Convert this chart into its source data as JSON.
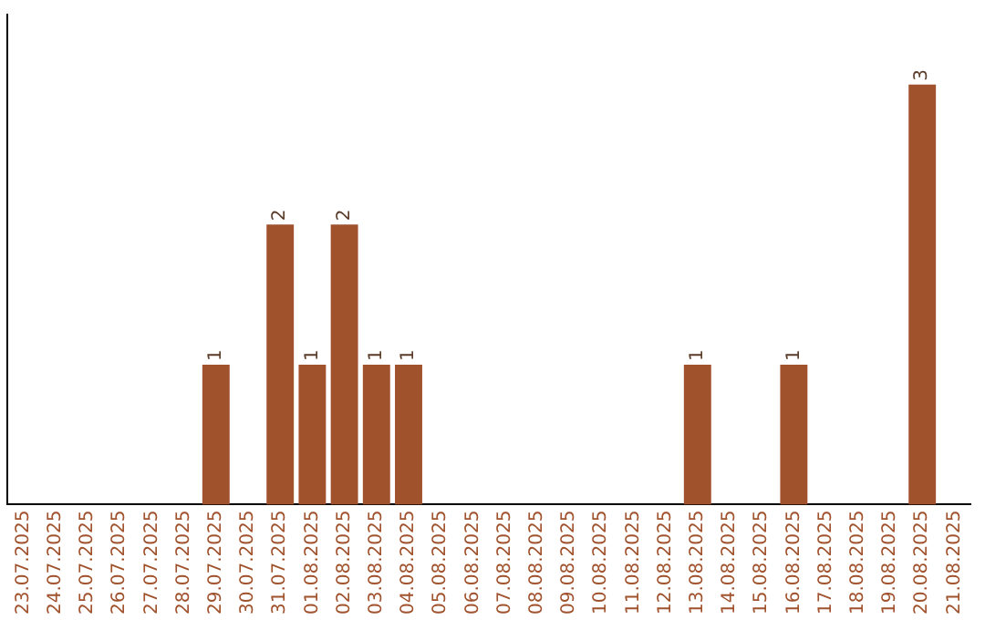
{
  "chart_data": {
    "type": "bar",
    "categories": [
      "23.07.2025",
      "24.07.2025",
      "25.07.2025",
      "26.07.2025",
      "27.07.2025",
      "28.07.2025",
      "29.07.2025",
      "30.07.2025",
      "31.07.2025",
      "01.08.2025",
      "02.08.2025",
      "03.08.2025",
      "04.08.2025",
      "05.08.2025",
      "06.08.2025",
      "07.08.2025",
      "08.08.2025",
      "09.08.2025",
      "10.08.2025",
      "11.08.2025",
      "12.08.2025",
      "13.08.2025",
      "14.08.2025",
      "15.08.2025",
      "16.08.2025",
      "17.08.2025",
      "18.08.2025",
      "19.08.2025",
      "20.08.2025",
      "21.08.2025"
    ],
    "values": [
      0,
      0,
      0,
      0,
      0,
      0,
      1,
      0,
      2,
      1,
      2,
      1,
      1,
      0,
      0,
      0,
      0,
      0,
      0,
      0,
      0,
      1,
      0,
      0,
      1,
      0,
      0,
      0,
      3,
      0
    ],
    "value_labels": [
      null,
      null,
      null,
      null,
      null,
      null,
      "1",
      null,
      "2",
      "1",
      "2",
      "1",
      "1",
      null,
      null,
      null,
      null,
      null,
      null,
      null,
      null,
      "1",
      null,
      null,
      "1",
      null,
      null,
      null,
      "3",
      null
    ],
    "color": "#a0522d",
    "grid": false,
    "legend": false,
    "tick_labels": "x"
  }
}
